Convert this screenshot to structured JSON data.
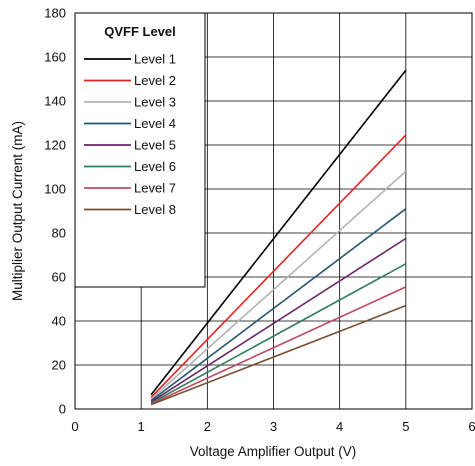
{
  "chart_data": {
    "type": "line",
    "xlabel": "Voltage Amplifier Output (V)",
    "ylabel": "Multiplier Output Current (mA)",
    "xlim": [
      0,
      6
    ],
    "ylim": [
      0,
      180
    ],
    "xticks": [
      0,
      1,
      2,
      3,
      4,
      5,
      6
    ],
    "yticks": [
      0,
      20,
      40,
      60,
      80,
      100,
      120,
      140,
      160,
      180
    ],
    "grid": true,
    "legend_title": "QVFF Level",
    "legend_position": "top-left",
    "series": [
      {
        "name": "Level 1",
        "color": "#000000",
        "x": [
          1.15,
          5
        ],
        "y": [
          6.5,
          154
        ]
      },
      {
        "name": "Level 2",
        "color": "#e8211f",
        "x": [
          1.15,
          5
        ],
        "y": [
          5.3,
          124.5
        ]
      },
      {
        "name": "Level 3",
        "color": "#b3b3b3",
        "x": [
          1.15,
          5
        ],
        "y": [
          4.5,
          108
        ]
      },
      {
        "name": "Level 4",
        "color": "#25566f",
        "x": [
          1.15,
          5
        ],
        "y": [
          3.8,
          91
        ]
      },
      {
        "name": "Level 5",
        "color": "#6a2668",
        "x": [
          1.15,
          5
        ],
        "y": [
          3.2,
          77.5
        ]
      },
      {
        "name": "Level 6",
        "color": "#2f7d5b",
        "x": [
          1.15,
          5
        ],
        "y": [
          2.7,
          66
        ]
      },
      {
        "name": "Level 7",
        "color": "#c0485e",
        "x": [
          1.15,
          5
        ],
        "y": [
          2.3,
          55.5
        ]
      },
      {
        "name": "Level 8",
        "color": "#7a5033",
        "x": [
          1.15,
          5
        ],
        "y": [
          2.0,
          47
        ]
      }
    ]
  }
}
